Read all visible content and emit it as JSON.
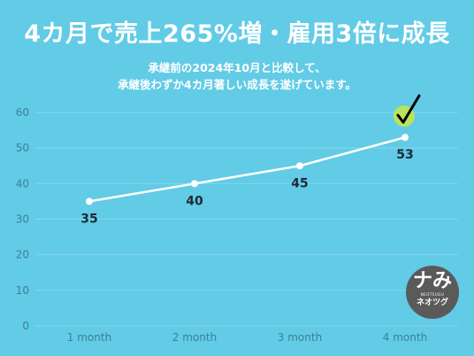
{
  "header": {
    "title": "4カ月で売上265%増・雇用3倍に成長",
    "subtitle_line1": "承継前の2024年10月と比較して、",
    "subtitle_line2": "承継後わずか4カ月著しい成長を遂げています。"
  },
  "logo": {
    "mark": "ナみ",
    "small_text": "NEOTSUGU",
    "name": "ネオツグ"
  },
  "colors": {
    "background": "#62cbe6",
    "grid": "#86d6ee",
    "line": "#ffffff",
    "label": "#1e2a38",
    "axis_text": "#3f7f97",
    "check_badge": "#b9e35e"
  },
  "icons": {
    "highlight": "check-icon"
  },
  "chart_data": {
    "type": "line",
    "categories": [
      "1 month",
      "2 month",
      "3 month",
      "4 month"
    ],
    "series": [
      {
        "values": [
          35,
          40,
          45,
          53
        ]
      }
    ],
    "data_labels": [
      "35",
      "40",
      "45",
      "53"
    ],
    "yticks": [
      0,
      10,
      20,
      30,
      40,
      50,
      60
    ],
    "ylim": [
      0,
      60
    ],
    "grid": true,
    "highlight_index": 3
  }
}
